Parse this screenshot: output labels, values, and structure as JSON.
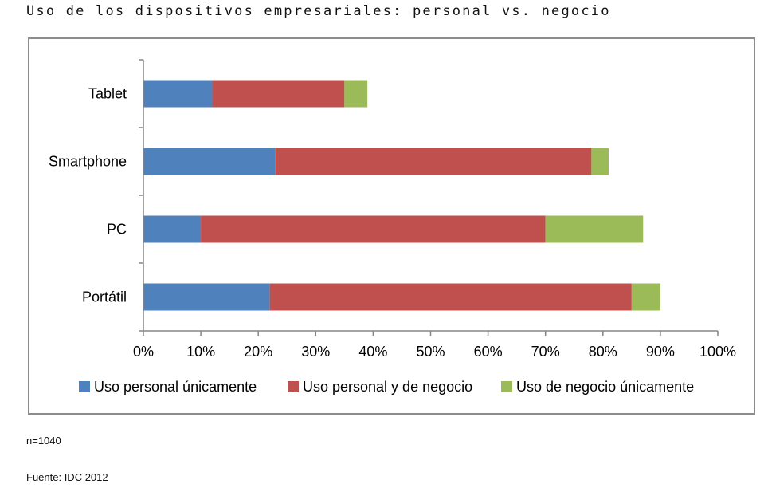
{
  "title": "Uso de los dispositivos empresariales: personal vs. negocio",
  "sample_note": "n=1040",
  "source_note": "Fuente: IDC 2012",
  "chart_data": {
    "type": "bar",
    "orientation": "horizontal",
    "stacked": true,
    "categories": [
      "Tablet",
      "Smartphone",
      "PC",
      "Portátil"
    ],
    "series": [
      {
        "name": "Uso personal únicamente",
        "color": "#4f81bd",
        "values": [
          12,
          23,
          10,
          22
        ]
      },
      {
        "name": "Uso personal y de negocio",
        "color": "#c0504d",
        "values": [
          23,
          55,
          60,
          63
        ]
      },
      {
        "name": "Uso de negocio únicamente",
        "color": "#9bbb59",
        "values": [
          4,
          3,
          17,
          5
        ]
      }
    ],
    "xlim": [
      0,
      100
    ],
    "xticks": [
      "0%",
      "10%",
      "20%",
      "30%",
      "40%",
      "50%",
      "60%",
      "70%",
      "80%",
      "90%",
      "100%"
    ],
    "grid": false,
    "legend": "bottom"
  }
}
